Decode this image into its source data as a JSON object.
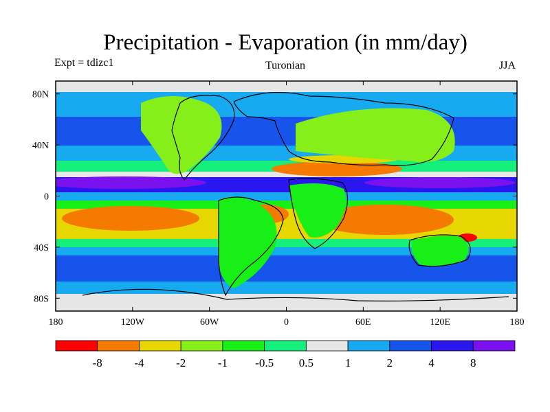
{
  "title": "Precipitation - Evaporation (in mm/day)",
  "left_label": "Expt = tdizc1",
  "center_label": "Turonian",
  "right_label": "JJA",
  "x_ticks": [
    "180",
    "120W",
    "60W",
    "0",
    "60E",
    "120E",
    "180"
  ],
  "y_ticks": [
    "80N",
    "40N",
    "0",
    "40S",
    "80S"
  ],
  "colorbar": {
    "colors": [
      "#ff0000",
      "#f57a00",
      "#e6d700",
      "#86ef19",
      "#17ef17",
      "#15f07d",
      "#e6e6e6",
      "#17aaf0",
      "#1654eb",
      "#2a17f0",
      "#7c11f0"
    ],
    "labels": [
      "-8",
      "-4",
      "-2",
      "-1",
      "-0.5",
      "0.5",
      "1",
      "2",
      "4",
      "8"
    ]
  }
}
